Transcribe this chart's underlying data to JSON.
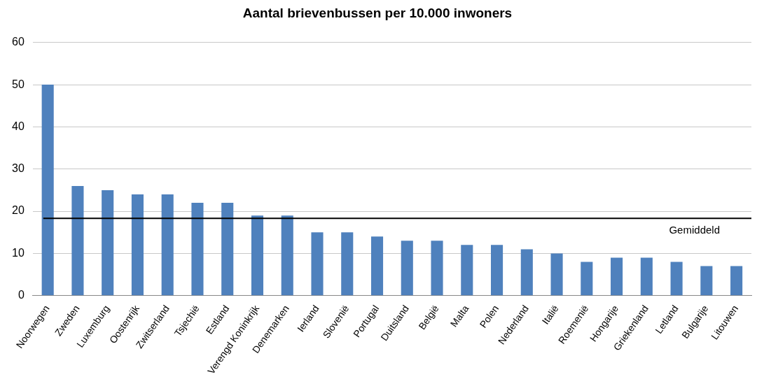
{
  "chart_data": {
    "type": "bar",
    "title": "Aantal brievenbussen per 10.000 inwoners",
    "categories": [
      "Noorwegen",
      "Zweden",
      "Luxemburg",
      "Oostenrijk",
      "Zwitserland",
      "Tsjechië",
      "Estland",
      "Verengd Koninkrijk",
      "Denemarken",
      "Ierland",
      "Slovenië",
      "Portugal",
      "Duitsland",
      "België",
      "Malta",
      "Polen",
      "Nederland",
      "Italië",
      "Roemenië",
      "Hongarije",
      "Griekenland",
      "Letland",
      "Bulgarije",
      "Litouwen"
    ],
    "values": [
      50,
      26,
      25,
      24,
      24,
      22,
      22,
      19,
      19,
      15,
      15,
      14,
      13,
      13,
      12,
      12,
      11,
      10,
      8,
      9,
      9,
      8,
      7,
      7
    ],
    "color": "#4f81bd",
    "ylim": [
      0,
      60
    ],
    "yticks": [
      0,
      10,
      20,
      30,
      40,
      50,
      60
    ],
    "grid": "y",
    "legend": false,
    "ref_lines": [
      {
        "axis": "y",
        "value": 18.3,
        "label": "Gemiddeld",
        "color": "#000000"
      }
    ]
  }
}
